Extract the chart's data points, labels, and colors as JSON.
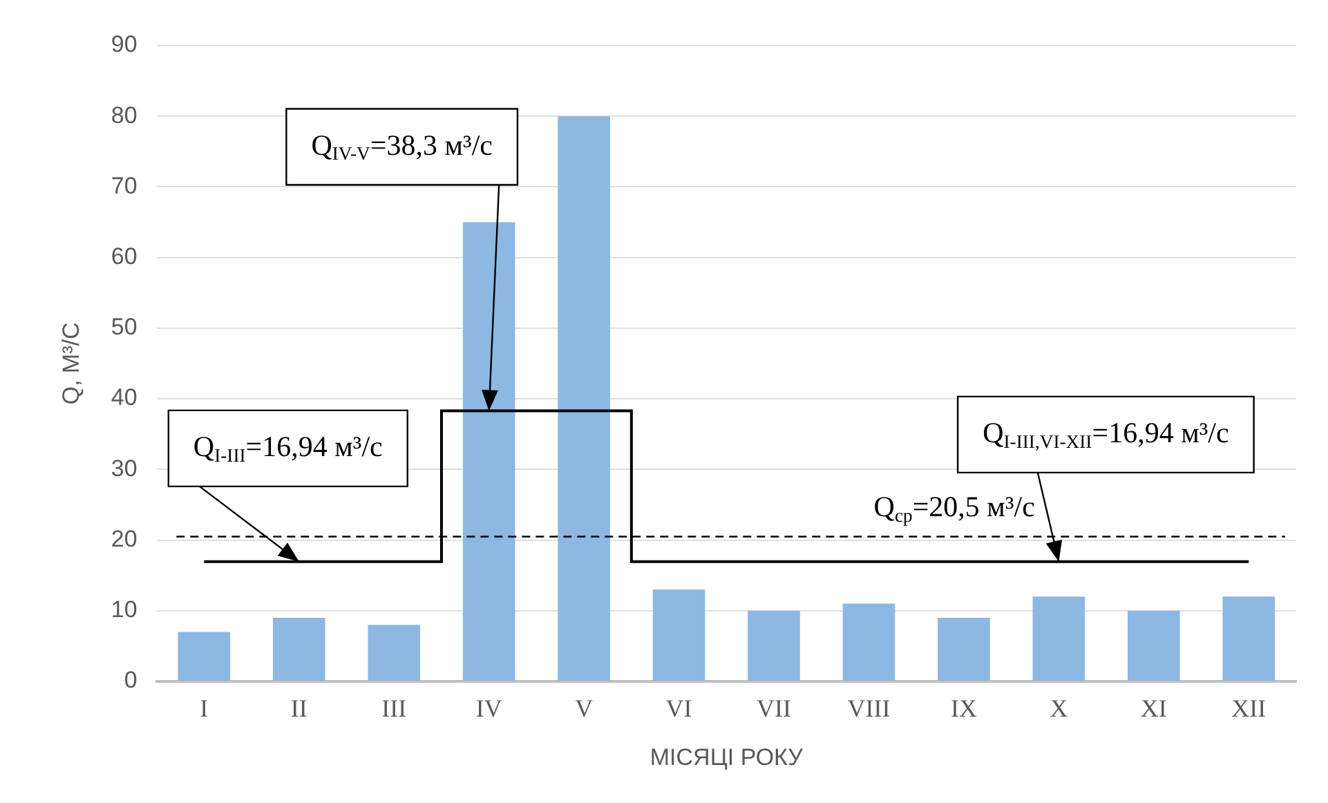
{
  "chart_data": {
    "type": "bar",
    "xlabel": "МІСЯЦІ РОКУ",
    "ylabel": "Q, М³/С",
    "categories": [
      "I",
      "II",
      "III",
      "IV",
      "V",
      "VI",
      "VII",
      "VIII",
      "IX",
      "X",
      "XI",
      "XII"
    ],
    "series": [
      {
        "color": "#8cb8e2",
        "values": [
          7,
          9,
          8,
          65,
          80,
          13,
          10,
          11,
          9,
          12,
          10,
          12
        ]
      },
      {
        "type": "step",
        "color": "#000000",
        "values": [
          16.94,
          16.94,
          16.94,
          38.3,
          38.3,
          16.94,
          16.94,
          16.94,
          16.94,
          16.94,
          16.94,
          16.94
        ]
      }
    ],
    "ylim": [
      0,
      90
    ],
    "yticks": [
      0,
      10,
      20,
      30,
      40,
      50,
      60,
      70,
      80,
      90
    ],
    "grid": "y",
    "ref_lines": [
      {
        "axis": "y",
        "value": 20.5,
        "label": "Q$_{ср}$=20,5 м³/с",
        "color": "#000000",
        "line_style": "dashed"
      }
    ],
    "annotations": [
      {
        "text": "Q$_{I-III}$=16,94 м³/с",
        "x": "II",
        "y": 16.94
      },
      {
        "text": "Q$_{IV-V}$=38,3 м³/с",
        "x": "IV",
        "y": 38.3
      },
      {
        "text": "Q$_{I-III,VI-XII}$=16,94 м³/с",
        "x": "X",
        "y": 16.94
      }
    ]
  }
}
